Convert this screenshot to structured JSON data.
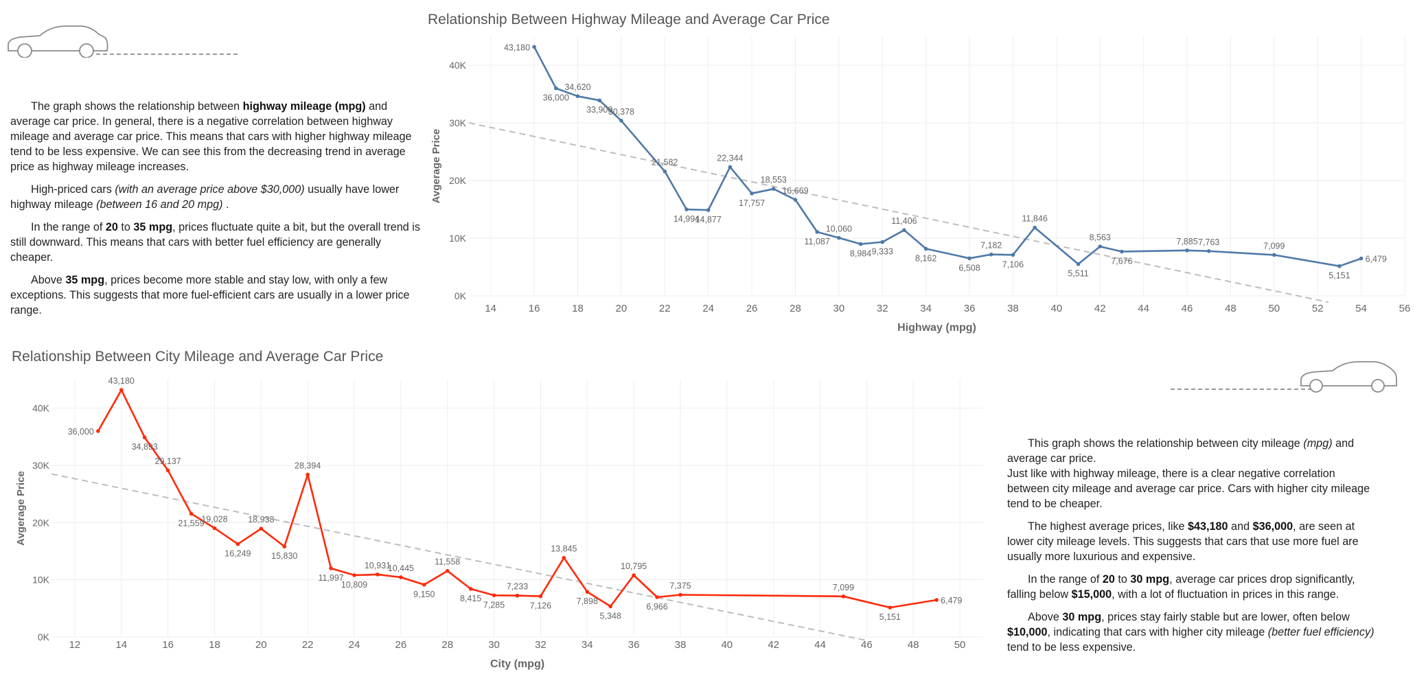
{
  "highway_text": {
    "p1": [
      "The graph shows the relationship between ",
      "highway mileage (mpg)",
      " and average car price. In general, there is a negative correlation between highway mileage and average car price. This means that cars with higher highway mileage tend to be less expensive. We can see this from the decreasing trend in average price as highway mileage increases."
    ],
    "p2": [
      "High-priced cars ",
      "(with an average price above $30,000)",
      " usually have lower highway mileage ",
      "(between 16 and 20 mpg)",
      " ."
    ],
    "p3": [
      "In the range of ",
      "20",
      " to ",
      "35 mpg",
      ", prices fluctuate quite a bit, but the overall trend is still downward. This means that cars with better fuel efficiency are generally cheaper."
    ],
    "p4": [
      "Above ",
      "35 mpg",
      ", prices become more stable and stay low, with only a few exceptions. This suggests that more fuel-efficient cars are usually in a lower price range."
    ]
  },
  "city_text": {
    "p1a": [
      "This graph shows the relationship between city mileage ",
      "(mpg)",
      " and average car price."
    ],
    "p1b": "Just like with highway mileage, there is a clear negative correlation between city mileage and average car price. Cars with higher city mileage tend to be cheaper.",
    "p2": [
      "The highest average prices, like ",
      "$43,180",
      " and ",
      "$36,000",
      ", are seen at lower city mileage levels. This suggests that cars that use more fuel are usually more luxurious and expensive."
    ],
    "p3": [
      "In the range of ",
      "20",
      " to ",
      "30 mpg",
      ", average car prices drop significantly, falling below ",
      "$15,000",
      ", with a lot of fluctuation in prices in this range."
    ],
    "p4": [
      "Above ",
      "30 mpg",
      ", prices stay fairly stable but are lower, often below ",
      "$10,000",
      ", indicating that cars with higher city mileage ",
      "(better fuel efficiency)",
      " tend to be less expensive."
    ]
  },
  "colors": {
    "highway_line": "#4e79a7",
    "city_line": "#ff2a0a",
    "trend_line": "#bdbdbd",
    "gridline": "#eeeeee",
    "axis_text": "#666666",
    "label_text": "#666666",
    "car_icon": "#8a8a8a"
  },
  "icons": [
    "car-icon",
    "car-icon"
  ],
  "chart_data": [
    {
      "type": "line",
      "title": "Relationship Between Highway Mileage and Average Car Price",
      "xlabel": "Highway (mpg)",
      "ylabel": "Avgerage Price",
      "xlim": [
        13,
        56
      ],
      "ylim": [
        0,
        45000
      ],
      "x_ticks": [
        14,
        16,
        18,
        20,
        22,
        24,
        26,
        28,
        30,
        32,
        34,
        36,
        38,
        40,
        42,
        44,
        46,
        48,
        50,
        52,
        54,
        56
      ],
      "y_ticks": [
        0,
        10000,
        20000,
        30000,
        40000
      ],
      "y_tick_labels": [
        "0K",
        "10K",
        "20K",
        "30K",
        "40K"
      ],
      "grid": true,
      "series": [
        {
          "x": [
            16,
            17,
            18,
            19,
            20,
            22,
            23,
            24,
            25,
            26,
            27,
            28,
            29,
            30,
            31,
            32,
            33,
            34,
            36,
            37,
            38,
            39,
            41,
            42,
            43,
            46,
            47,
            50,
            53,
            54
          ],
          "values": [
            43180,
            36000,
            34620,
            33900,
            30378,
            21582,
            14994,
            14877,
            22344,
            17757,
            18553,
            16669,
            11087,
            10060,
            8984,
            9333,
            11406,
            8162,
            6508,
            7182,
            7106,
            11846,
            5511,
            8563,
            7676,
            7885,
            7763,
            7099,
            5151,
            6479
          ],
          "labels": [
            "43,180",
            "36,000",
            "34,620",
            "33,900",
            "30,378",
            "21,582",
            "14,994",
            "14,877",
            "22,344",
            "17,757",
            "18,553",
            "16,669",
            "11,087",
            "10,060",
            "8,984",
            "9,333",
            "11,406",
            "8,162",
            "6,508",
            "7,182",
            "7,106",
            "11,846",
            "5,511",
            "8,563",
            "7,676",
            "7,885",
            "7,763",
            "7,099",
            "5,151",
            "6,479"
          ]
        }
      ],
      "trend": {
        "x": [
          13,
          52.5
        ],
        "values": [
          30000,
          -1100
        ]
      }
    },
    {
      "type": "line",
      "title": "Relationship Between City Mileage and Average Car Price",
      "xlabel": "City (mpg)",
      "ylabel": "Avgerage Price",
      "xlim": [
        11,
        51
      ],
      "ylim": [
        0,
        45000
      ],
      "x_ticks": [
        12,
        14,
        16,
        18,
        20,
        22,
        24,
        26,
        28,
        30,
        32,
        34,
        36,
        38,
        40,
        42,
        44,
        46,
        48,
        50
      ],
      "y_ticks": [
        0,
        10000,
        20000,
        30000,
        40000
      ],
      "y_tick_labels": [
        "0K",
        "10K",
        "20K",
        "30K",
        "40K"
      ],
      "grid": true,
      "series": [
        {
          "x": [
            13,
            14,
            15,
            16,
            17,
            18,
            19,
            20,
            21,
            22,
            23,
            24,
            25,
            26,
            27,
            28,
            29,
            30,
            31,
            32,
            33,
            34,
            35,
            36,
            37,
            38,
            45,
            47,
            49
          ],
          "values": [
            36000,
            43180,
            34893,
            29137,
            21559,
            19028,
            16249,
            18938,
            15830,
            28394,
            11997,
            10809,
            10931,
            10445,
            9150,
            11558,
            8415,
            7285,
            7233,
            7126,
            13845,
            7898,
            5348,
            10795,
            6966,
            7375,
            7099,
            5151,
            6479
          ],
          "labels": [
            "36,000",
            "43,180",
            "34,893",
            "29,137",
            "21,559",
            "19,028",
            "16,249",
            "18,938",
            "15,830",
            "28,394",
            "11,997",
            "10,809",
            "10,931",
            "10,445",
            "9,150",
            "11,558",
            "8,415",
            "7,285",
            "7,233",
            "7,126",
            "13,845",
            "7,898",
            "5,348",
            "10,795",
            "6,966",
            "7,375",
            "7,099",
            "5,151",
            "6,479"
          ]
        }
      ],
      "trend": {
        "x": [
          11,
          46
        ],
        "values": [
          28500,
          -600
        ]
      }
    }
  ]
}
